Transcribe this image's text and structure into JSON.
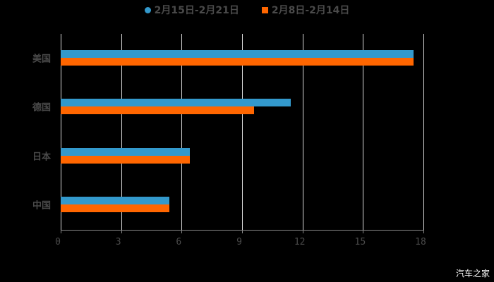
{
  "chart_data": {
    "type": "bar",
    "orientation": "horizontal",
    "title": "",
    "categories": [
      "美国",
      "德国",
      "日本",
      "中国"
    ],
    "series": [
      {
        "name": "2月15日-2月21日",
        "color": "#3399cc",
        "values": [
          17.5,
          11.4,
          6.4,
          5.4
        ]
      },
      {
        "name": "2月8日-2月14日",
        "color": "#ff6600",
        "values": [
          17.5,
          9.6,
          6.4,
          5.4
        ]
      }
    ],
    "xlabel": "",
    "ylabel": "",
    "xlim": [
      0,
      18
    ],
    "xticks": [
      "0",
      "3",
      "6",
      "9",
      "12",
      "15",
      "18"
    ],
    "grid": "vertical",
    "legend_position": "top"
  },
  "legend": {
    "series1": "2月15日-2月21日",
    "series2": "2月8日-2月14日"
  },
  "watermark": "汽车之家"
}
